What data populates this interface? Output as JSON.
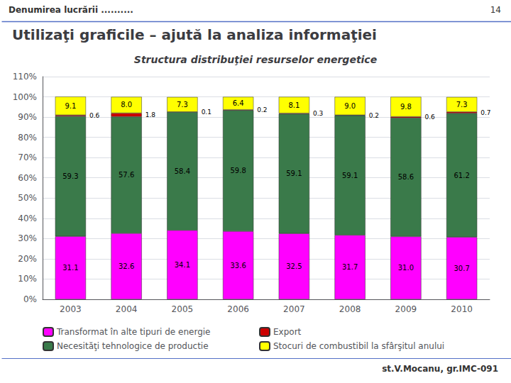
{
  "chart_data": {
    "type": "bar",
    "title": "Utilizaţi graficile – ajută la analiza informaţiei",
    "subtitle": "Structura distribuţiei resurselor energetice",
    "annotations": [
      "Denumirea lucrării ..........",
      "14",
      "st.V.Mocanu, gr.IMC-091"
    ],
    "categories": [
      "2003",
      "2004",
      "2005",
      "2006",
      "2007",
      "2008",
      "2009",
      "2010"
    ],
    "series": [
      {
        "name": "Transformat în alte tipuri de energie",
        "color": "#FF00FF",
        "values": [
          31.1,
          32.6,
          34.1,
          33.6,
          32.5,
          31.7,
          31.0,
          30.7
        ],
        "value_labels": [
          "31.1",
          "32.6",
          "34.1",
          "33.6",
          "32.5",
          "31.7",
          "31.0",
          "30.7"
        ]
      },
      {
        "name": "Necesităţi tehnologice de productie",
        "color": "#3A7A4A",
        "values": [
          59.3,
          57.6,
          58.4,
          59.8,
          59.1,
          59.1,
          58.6,
          61.2
        ]
      },
      {
        "name": "Export",
        "color": "#CC0000",
        "values": [
          0.6,
          1.8,
          0.1,
          0.2,
          0.3,
          0.2,
          0.6,
          0.7
        ]
      },
      {
        "name": "Stocuri de combustibil la sfârşitul anului",
        "color": "#FFFF00",
        "values": [
          9.1,
          8.0,
          7.3,
          6.4,
          8.1,
          9.0,
          9.8,
          7.3
        ],
        "value_labels": [
          "9.1",
          "8.0",
          "7.3",
          "6.4",
          "8.1",
          "9.0",
          "9.8",
          "7.3"
        ]
      }
    ],
    "stacked": true,
    "data_labels": true,
    "grid": true,
    "legend": "bottom",
    "ylim": [
      0,
      110
    ],
    "yticks": [
      {
        "value": 0,
        "label": "0%"
      },
      {
        "value": 10,
        "label": "10%"
      },
      {
        "value": 20,
        "label": "20%"
      },
      {
        "value": 30,
        "label": "30%"
      },
      {
        "value": 40,
        "label": "40%"
      },
      {
        "value": 50,
        "label": "50%"
      },
      {
        "value": 60,
        "label": "60%"
      },
      {
        "value": 70,
        "label": "70%"
      },
      {
        "value": 80,
        "label": "80%"
      },
      {
        "value": 90,
        "label": "90%"
      },
      {
        "value": 100,
        "label": "100%"
      },
      {
        "value": 110,
        "label": "110%"
      }
    ]
  }
}
